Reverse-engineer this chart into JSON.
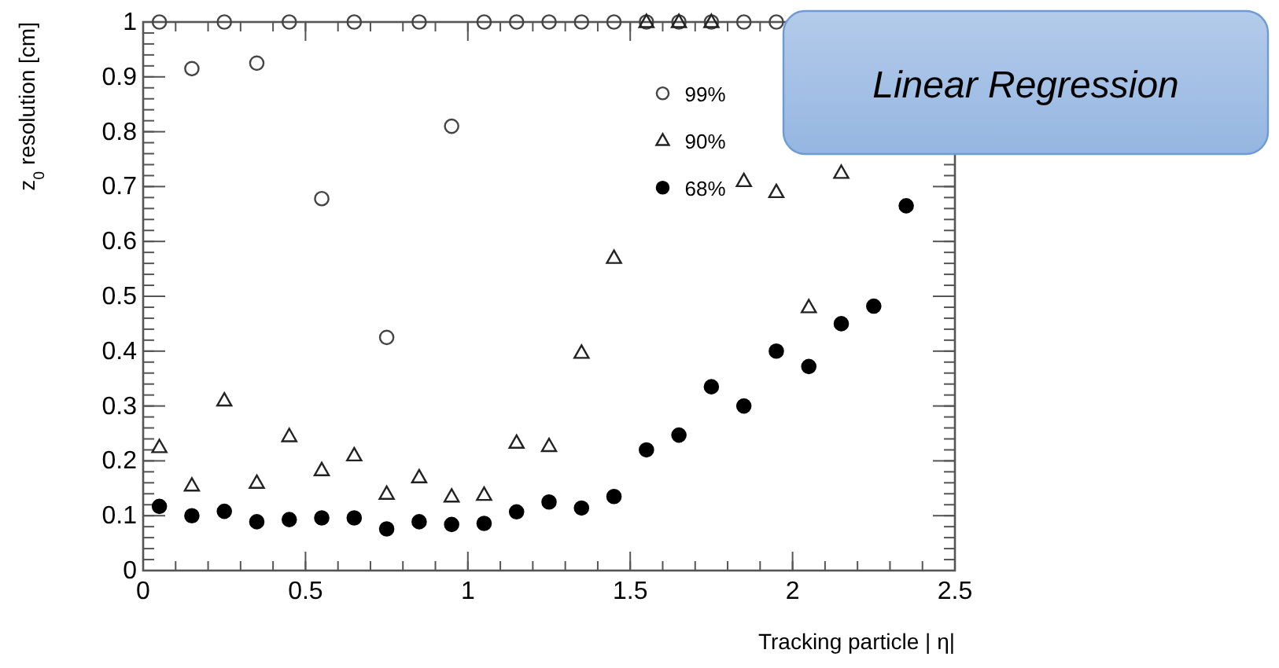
{
  "chart_data": {
    "type": "scatter",
    "xlabel": "Tracking particle | η|",
    "ylabel": "z$_{0}$ resolution [cm]",
    "x": [
      0.05,
      0.15,
      0.25,
      0.35,
      0.45,
      0.55,
      0.65,
      0.75,
      0.85,
      0.95,
      1.05,
      1.15,
      1.25,
      1.35,
      1.45,
      1.55,
      1.65,
      1.75,
      1.85,
      1.95,
      2.05,
      2.15,
      2.25,
      2.35
    ],
    "series": [
      {
        "name": "99%",
        "color": "#444444",
        "marker": "circle",
        "values": [
          1,
          0.915,
          1,
          0.925,
          1,
          0.678,
          1,
          0.425,
          1,
          0.81,
          1,
          1,
          1,
          1,
          1,
          1,
          1,
          1,
          1,
          1,
          null,
          null,
          null,
          null
        ]
      },
      {
        "name": "90%",
        "color": "#222222",
        "marker": "triangle",
        "values": [
          0.225,
          0.155,
          0.31,
          0.16,
          0.245,
          0.183,
          0.21,
          0.14,
          0.17,
          0.135,
          0.138,
          0.233,
          0.227,
          0.397,
          0.57,
          1,
          1,
          1,
          0.71,
          0.69,
          0.48,
          0.725,
          null,
          null
        ]
      },
      {
        "name": "68%",
        "color": "#000000",
        "marker": "circle",
        "values": [
          0.117,
          0.1,
          0.108,
          0.089,
          0.093,
          0.096,
          0.096,
          0.076,
          0.089,
          0.084,
          0.086,
          0.107,
          0.125,
          0.114,
          0.135,
          0.22,
          0.247,
          0.335,
          0.3,
          0.4,
          0.372,
          0.45,
          0.482,
          0.665
        ]
      }
    ],
    "xlim": [
      0,
      2.5
    ],
    "xticks": [
      0,
      0.5,
      1,
      1.5,
      2,
      2.5
    ],
    "ylim": [
      0,
      1
    ],
    "yticks": [
      0,
      0.1,
      0.2,
      0.3,
      0.4,
      0.5,
      0.6,
      0.7,
      0.8,
      0.9,
      1
    ],
    "grid": false,
    "legend": "top",
    "annotations": [
      "Linear Regression"
    ]
  }
}
